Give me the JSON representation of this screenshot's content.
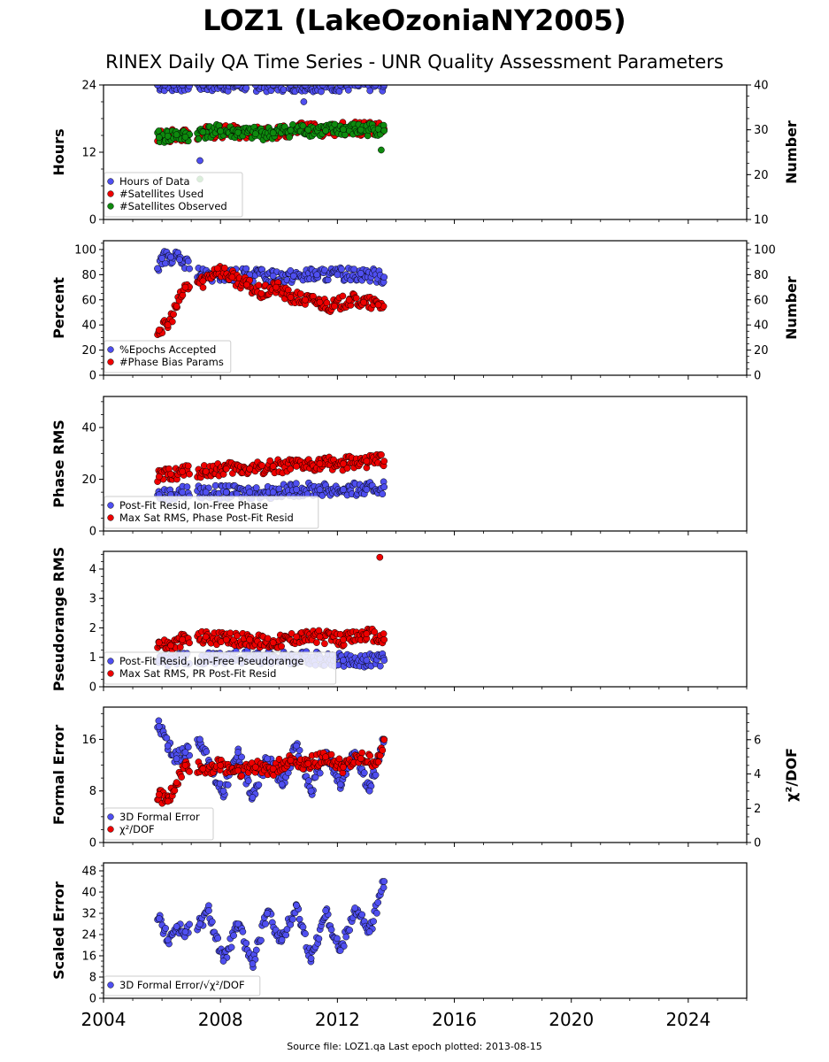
{
  "title": "LOZ1 (LakeOzoniaNY2005)",
  "subtitle": "RINEX Daily QA Time Series - UNR Quality Assessment Parameters",
  "footer": "Source file: LOZ1.qa Last epoch plotted: 2013-08-15",
  "colors": {
    "blue": "#4f4ff0",
    "red": "#ee0000",
    "green": "#0e8a0e"
  },
  "chart_data": [
    {
      "type": "scatter",
      "ylabel": "Hours",
      "ylabel_right": "Number",
      "xlim": [
        2004,
        2026
      ],
      "ylim": [
        0,
        24
      ],
      "ylim_right": [
        10,
        40
      ],
      "yticks": [
        0,
        12,
        24
      ],
      "yticks_right": [
        10,
        20,
        30,
        40
      ],
      "legend_position": "lower-left",
      "series": [
        {
          "name": "Hours of Data",
          "color": "#4f4ff0",
          "axis": "left",
          "x": [
            2005.85,
            2006.1,
            2006.4,
            2006.7,
            2007.4,
            2008.0,
            2008.6,
            2009.2,
            2009.8,
            2010.4,
            2010.9,
            2011.5,
            2012.1,
            2012.7,
            2013.3,
            2013.6,
            2007.3,
            2010.85
          ],
          "y": [
            24,
            24,
            24,
            24,
            24,
            24,
            24,
            24,
            24,
            24,
            24,
            24,
            24,
            24,
            24,
            24,
            10.5,
            21
          ]
        },
        {
          "name": "#Satellites Used",
          "color": "#ee0000",
          "axis": "right",
          "x": [
            2005.9,
            2006.3,
            2006.7,
            2007.5,
            2008.2,
            2009.0,
            2009.8,
            2010.6,
            2011.4,
            2012.2,
            2013.0,
            2013.6,
            2006.8
          ],
          "y": [
            28.5,
            28.7,
            28.6,
            29.6,
            29.5,
            29.4,
            29.2,
            30.2,
            30.0,
            30.3,
            30.2,
            30.1,
            30.0
          ]
        },
        {
          "name": "#Satellites Observed",
          "color": "#0e8a0e",
          "axis": "right",
          "x": [
            2005.9,
            2006.2,
            2006.5,
            2006.8,
            2007.4,
            2008.0,
            2008.6,
            2009.2,
            2009.8,
            2010.4,
            2011.0,
            2011.6,
            2012.2,
            2012.8,
            2013.4,
            2013.6,
            2007.3,
            2013.5
          ],
          "y": [
            28.3,
            28.6,
            28.9,
            28.4,
            29.5,
            29.7,
            29.4,
            29.1,
            29.3,
            29.9,
            30.0,
            29.8,
            30.1,
            30.0,
            30.2,
            29.8,
            19.0,
            25.5
          ]
        }
      ]
    },
    {
      "type": "scatter",
      "ylabel": "Percent",
      "ylabel_right": "Number",
      "xlim": [
        2004,
        2026
      ],
      "ylim": [
        0,
        107
      ],
      "ylim_right": [
        0,
        107
      ],
      "yticks": [
        0,
        20,
        40,
        60,
        80,
        100
      ],
      "yticks_right": [
        0,
        20,
        40,
        60,
        80,
        100
      ],
      "legend_position": "lower-left",
      "series": [
        {
          "name": "%Epochs Accepted",
          "color": "#4f4ff0",
          "axis": "left",
          "x": [
            2005.85,
            2006.0,
            2006.3,
            2006.6,
            2007.5,
            2008.2,
            2009.0,
            2009.8,
            2010.5,
            2011.3,
            2012.0,
            2012.8,
            2013.6
          ],
          "y": [
            85,
            93,
            94,
            92,
            78,
            79,
            80,
            79,
            79,
            80,
            80,
            81,
            78
          ]
        },
        {
          "name": "#Phase Bias Params",
          "color": "#ee0000",
          "axis": "right",
          "x": [
            2005.9,
            2006.2,
            2006.5,
            2006.8,
            2007.4,
            2007.9,
            2008.4,
            2008.9,
            2009.4,
            2009.9,
            2010.4,
            2010.9,
            2011.4,
            2011.9,
            2012.4,
            2012.9,
            2013.4
          ],
          "y": [
            36,
            40,
            55,
            70,
            75,
            85,
            78,
            72,
            65,
            70,
            62,
            60,
            58,
            55,
            60,
            58,
            56
          ]
        }
      ]
    },
    {
      "type": "scatter",
      "ylabel": "Phase RMS",
      "xlim": [
        2004,
        2026
      ],
      "ylim": [
        0,
        52
      ],
      "yticks": [
        0,
        20,
        40
      ],
      "legend_position": "lower-left",
      "series": [
        {
          "name": "Post-Fit Resid, Ion-Free Phase",
          "color": "#4f4ff0",
          "axis": "left",
          "x": [
            2005.9,
            2006.3,
            2006.7,
            2007.5,
            2008.2,
            2009.0,
            2009.8,
            2010.6,
            2011.4,
            2012.2,
            2013.0,
            2013.6
          ],
          "y": [
            14,
            14,
            15,
            15,
            15,
            15,
            15,
            16,
            16,
            16,
            16,
            17
          ]
        },
        {
          "name": "Max Sat RMS, Phase Post-Fit Resid",
          "color": "#ee0000",
          "axis": "left",
          "x": [
            2005.9,
            2006.3,
            2006.7,
            2007.5,
            2008.2,
            2009.0,
            2009.8,
            2010.6,
            2011.4,
            2012.2,
            2013.0,
            2013.6
          ],
          "y": [
            21,
            22,
            23,
            23,
            24,
            24,
            25,
            25,
            26,
            26,
            27,
            27
          ]
        }
      ]
    },
    {
      "type": "scatter",
      "ylabel": "Pseudorange RMS",
      "xlim": [
        2004,
        2026
      ],
      "ylim": [
        0,
        4.6
      ],
      "yticks": [
        0,
        1,
        2,
        3,
        4
      ],
      "legend_position": "lower-left",
      "series": [
        {
          "name": "Post-Fit Resid, Ion-Free Pseudorange",
          "color": "#4f4ff0",
          "axis": "left",
          "x": [
            2005.9,
            2006.3,
            2006.7,
            2007.5,
            2008.2,
            2009.0,
            2009.8,
            2010.6,
            2011.4,
            2012.2,
            2013.0,
            2013.6
          ],
          "y": [
            0.9,
            0.95,
            0.95,
            1.0,
            1.0,
            1.0,
            1.0,
            1.0,
            0.95,
            0.9,
            0.9,
            0.9
          ]
        },
        {
          "name": "Max Sat RMS, PR Post-Fit Resid",
          "color": "#ee0000",
          "axis": "left",
          "x": [
            2005.9,
            2006.3,
            2006.7,
            2007.5,
            2008.2,
            2009.0,
            2009.8,
            2010.6,
            2011.4,
            2012.2,
            2013.0,
            2013.6,
            2013.45
          ],
          "y": [
            1.5,
            1.4,
            1.6,
            1.7,
            1.6,
            1.6,
            1.5,
            1.7,
            1.7,
            1.6,
            1.8,
            1.6,
            4.4
          ]
        }
      ]
    },
    {
      "type": "scatter",
      "ylabel": "Formal Error",
      "ylabel_right": "χ²/DOF",
      "xlim": [
        2004,
        2026
      ],
      "ylim": [
        0,
        21
      ],
      "ylim_right": [
        0,
        7.9
      ],
      "yticks": [
        0,
        8,
        16
      ],
      "yticks_right": [
        0,
        2,
        4,
        6
      ],
      "legend_position": "lower-left",
      "series": [
        {
          "name": "3D Formal Error",
          "color": "#4f4ff0",
          "axis": "left",
          "x": [
            2005.9,
            2006.2,
            2006.5,
            2006.8,
            2007.3,
            2007.6,
            2008.1,
            2008.6,
            2009.1,
            2009.6,
            2010.1,
            2010.6,
            2011.1,
            2011.6,
            2012.1,
            2012.6,
            2013.1,
            2013.6
          ],
          "y": [
            18,
            15,
            13,
            14,
            16,
            12,
            8,
            14,
            7,
            13,
            9,
            15,
            8,
            14,
            9,
            14,
            8,
            16
          ]
        },
        {
          "name": "χ²/DOF",
          "color": "#ee0000",
          "axis": "right",
          "x": [
            2005.9,
            2006.2,
            2006.5,
            2006.8,
            2007.4,
            2008.0,
            2008.6,
            2009.2,
            2009.8,
            2010.4,
            2011.0,
            2011.6,
            2012.2,
            2012.8,
            2013.4,
            2013.6
          ],
          "y": [
            2.8,
            2.4,
            3.5,
            4.5,
            4.3,
            4.5,
            4.2,
            4.4,
            4.3,
            4.8,
            4.6,
            5.0,
            4.4,
            4.9,
            4.7,
            6.0
          ]
        }
      ]
    },
    {
      "type": "scatter",
      "ylabel": "Scaled Error",
      "xlabel_ticks": [
        "2004",
        "2008",
        "2012",
        "2016",
        "2020",
        "2024"
      ],
      "xticks": [
        2004,
        2008,
        2012,
        2016,
        2020,
        2024
      ],
      "xlim": [
        2004,
        2026
      ],
      "ylim": [
        0,
        51
      ],
      "yticks": [
        0,
        8,
        16,
        24,
        32,
        40,
        48
      ],
      "legend_position": "lower-left",
      "series": [
        {
          "name": "3D Formal Error/√χ²/DOF",
          "color": "#4f4ff0",
          "axis": "left",
          "x": [
            2005.9,
            2006.2,
            2006.5,
            2006.8,
            2007.3,
            2007.6,
            2008.1,
            2008.6,
            2009.1,
            2009.6,
            2010.1,
            2010.6,
            2011.1,
            2011.6,
            2012.1,
            2012.6,
            2013.1,
            2013.6
          ],
          "y": [
            30,
            22,
            27,
            25,
            28,
            33,
            14,
            28,
            13,
            32,
            22,
            35,
            15,
            33,
            18,
            34,
            25,
            44
          ]
        }
      ]
    }
  ]
}
